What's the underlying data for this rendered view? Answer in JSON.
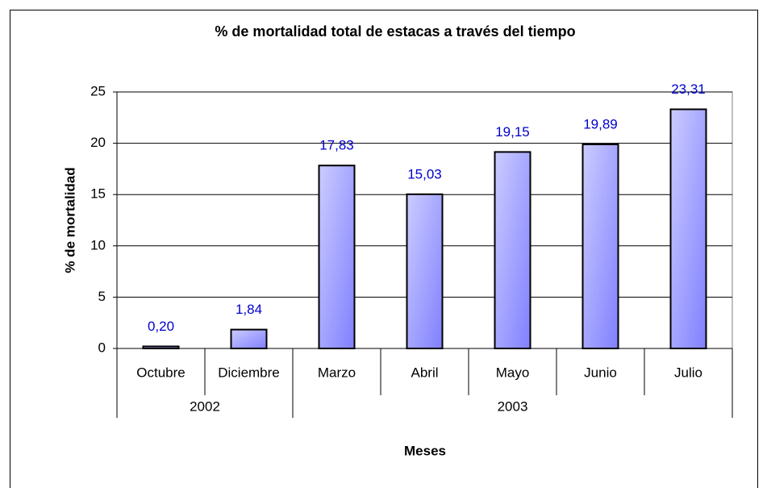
{
  "chart_data": {
    "type": "bar",
    "title": "% de mortalidad total de estacas a través del tiempo",
    "x_label": "Meses",
    "y_label": "% de mortalidad",
    "categories": [
      "Octubre",
      "Diciembre",
      "Marzo",
      "Abril",
      "Mayo",
      "Junio",
      "Julio"
    ],
    "groups": [
      {
        "label": "2002",
        "count": 2
      },
      {
        "label": "2003",
        "count": 5
      }
    ],
    "values": [
      0.2,
      1.84,
      17.83,
      15.03,
      19.15,
      19.89,
      23.31
    ],
    "value_labels": [
      "0,20",
      "1,84",
      "17,83",
      "15,03",
      "19,15",
      "19,89",
      "23,31"
    ],
    "color": "#8080ff",
    "label_color": "#0000cc",
    "ylim": [
      0,
      25
    ],
    "yticks": [
      0,
      5,
      10,
      15,
      20,
      25
    ],
    "grid": true
  }
}
